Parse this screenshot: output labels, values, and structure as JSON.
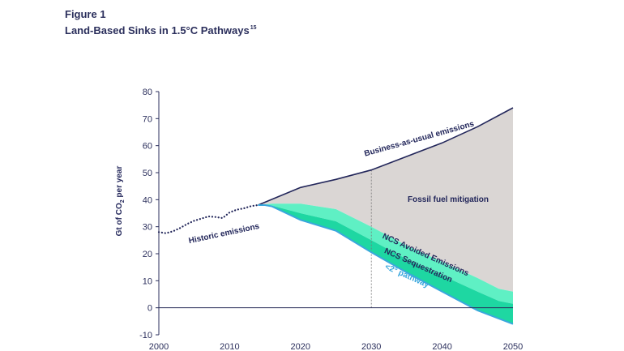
{
  "figure": {
    "label": "Figure 1",
    "title": "Land-Based Sinks in 1.5°C Pathways",
    "title_superscript": "15"
  },
  "chart_data": {
    "type": "area",
    "title": "Land-Based Sinks in 1.5°C Pathways",
    "xlabel": "",
    "ylabel": "Gt of CO₂ per year",
    "ylabel_main": "Gt of CO",
    "ylabel_sub": "2",
    "ylabel_rest": " per year",
    "xlim": [
      2000,
      2050
    ],
    "ylim": [
      -10,
      80
    ],
    "x_ticks": [
      2000,
      2010,
      2020,
      2030,
      2040,
      2050
    ],
    "y_ticks": [
      80,
      70,
      60,
      50,
      40,
      30,
      20,
      10,
      0,
      -10
    ],
    "grid": false,
    "reference_year": 2030,
    "series": [
      {
        "name": "Historic emissions",
        "style": "dotted",
        "x": [
          2000,
          2001,
          2002,
          2003,
          2004,
          2005,
          2006,
          2007,
          2008,
          2009,
          2010,
          2011,
          2012,
          2013,
          2014
        ],
        "values": [
          28,
          27.6,
          28.3,
          29.5,
          31,
          32.2,
          33,
          33.8,
          33.6,
          33.2,
          35.3,
          36.3,
          36.8,
          37.6,
          38
        ]
      },
      {
        "name": "Business-as-usual emissions",
        "x": [
          2014,
          2020,
          2025,
          2030,
          2035,
          2040,
          2045,
          2050
        ],
        "values": [
          38,
          44.5,
          47.5,
          51,
          56,
          61,
          67,
          74
        ]
      },
      {
        "name": "Fossil fuel mitigation",
        "x": [
          2014,
          2016,
          2020,
          2025,
          2030,
          2035,
          2040,
          2045,
          2048,
          2050
        ],
        "values": [
          38,
          38.5,
          38.5,
          36.5,
          30,
          23,
          17,
          11,
          7,
          6
        ]
      },
      {
        "name": "NCS Avoided Emissions",
        "x": [
          2014,
          2016,
          2020,
          2025,
          2030,
          2035,
          2040,
          2045,
          2048,
          2050
        ],
        "values": [
          38,
          37.8,
          35,
          32,
          25,
          18,
          12,
          6,
          2.5,
          1.5
        ]
      },
      {
        "name": "NCS Sequestration",
        "x": [
          2014,
          2015,
          2016,
          2020,
          2025,
          2030,
          2035,
          2040,
          2045,
          2050
        ],
        "values": [
          38,
          38,
          37.5,
          32.5,
          28.5,
          20.5,
          13,
          6,
          -1,
          -6
        ]
      }
    ],
    "annotations": {
      "historic": "Historic emissions",
      "bau": "Business-as-usual emissions",
      "fossil": "Fossil fuel mitigation",
      "avoided": "NCS Avoided Emissions",
      "sequestration": "NCS Sequestration",
      "pathway": "<2° pathway"
    },
    "colors": {
      "navy": "#22265a",
      "gray_area": "#dad6d4",
      "avoided_area": "#5ff0c4",
      "seq_area": "#1ed7a2",
      "pathway_line": "#3aa7dd",
      "axis": "#2b2f5c",
      "ref_line": "#777777"
    }
  }
}
